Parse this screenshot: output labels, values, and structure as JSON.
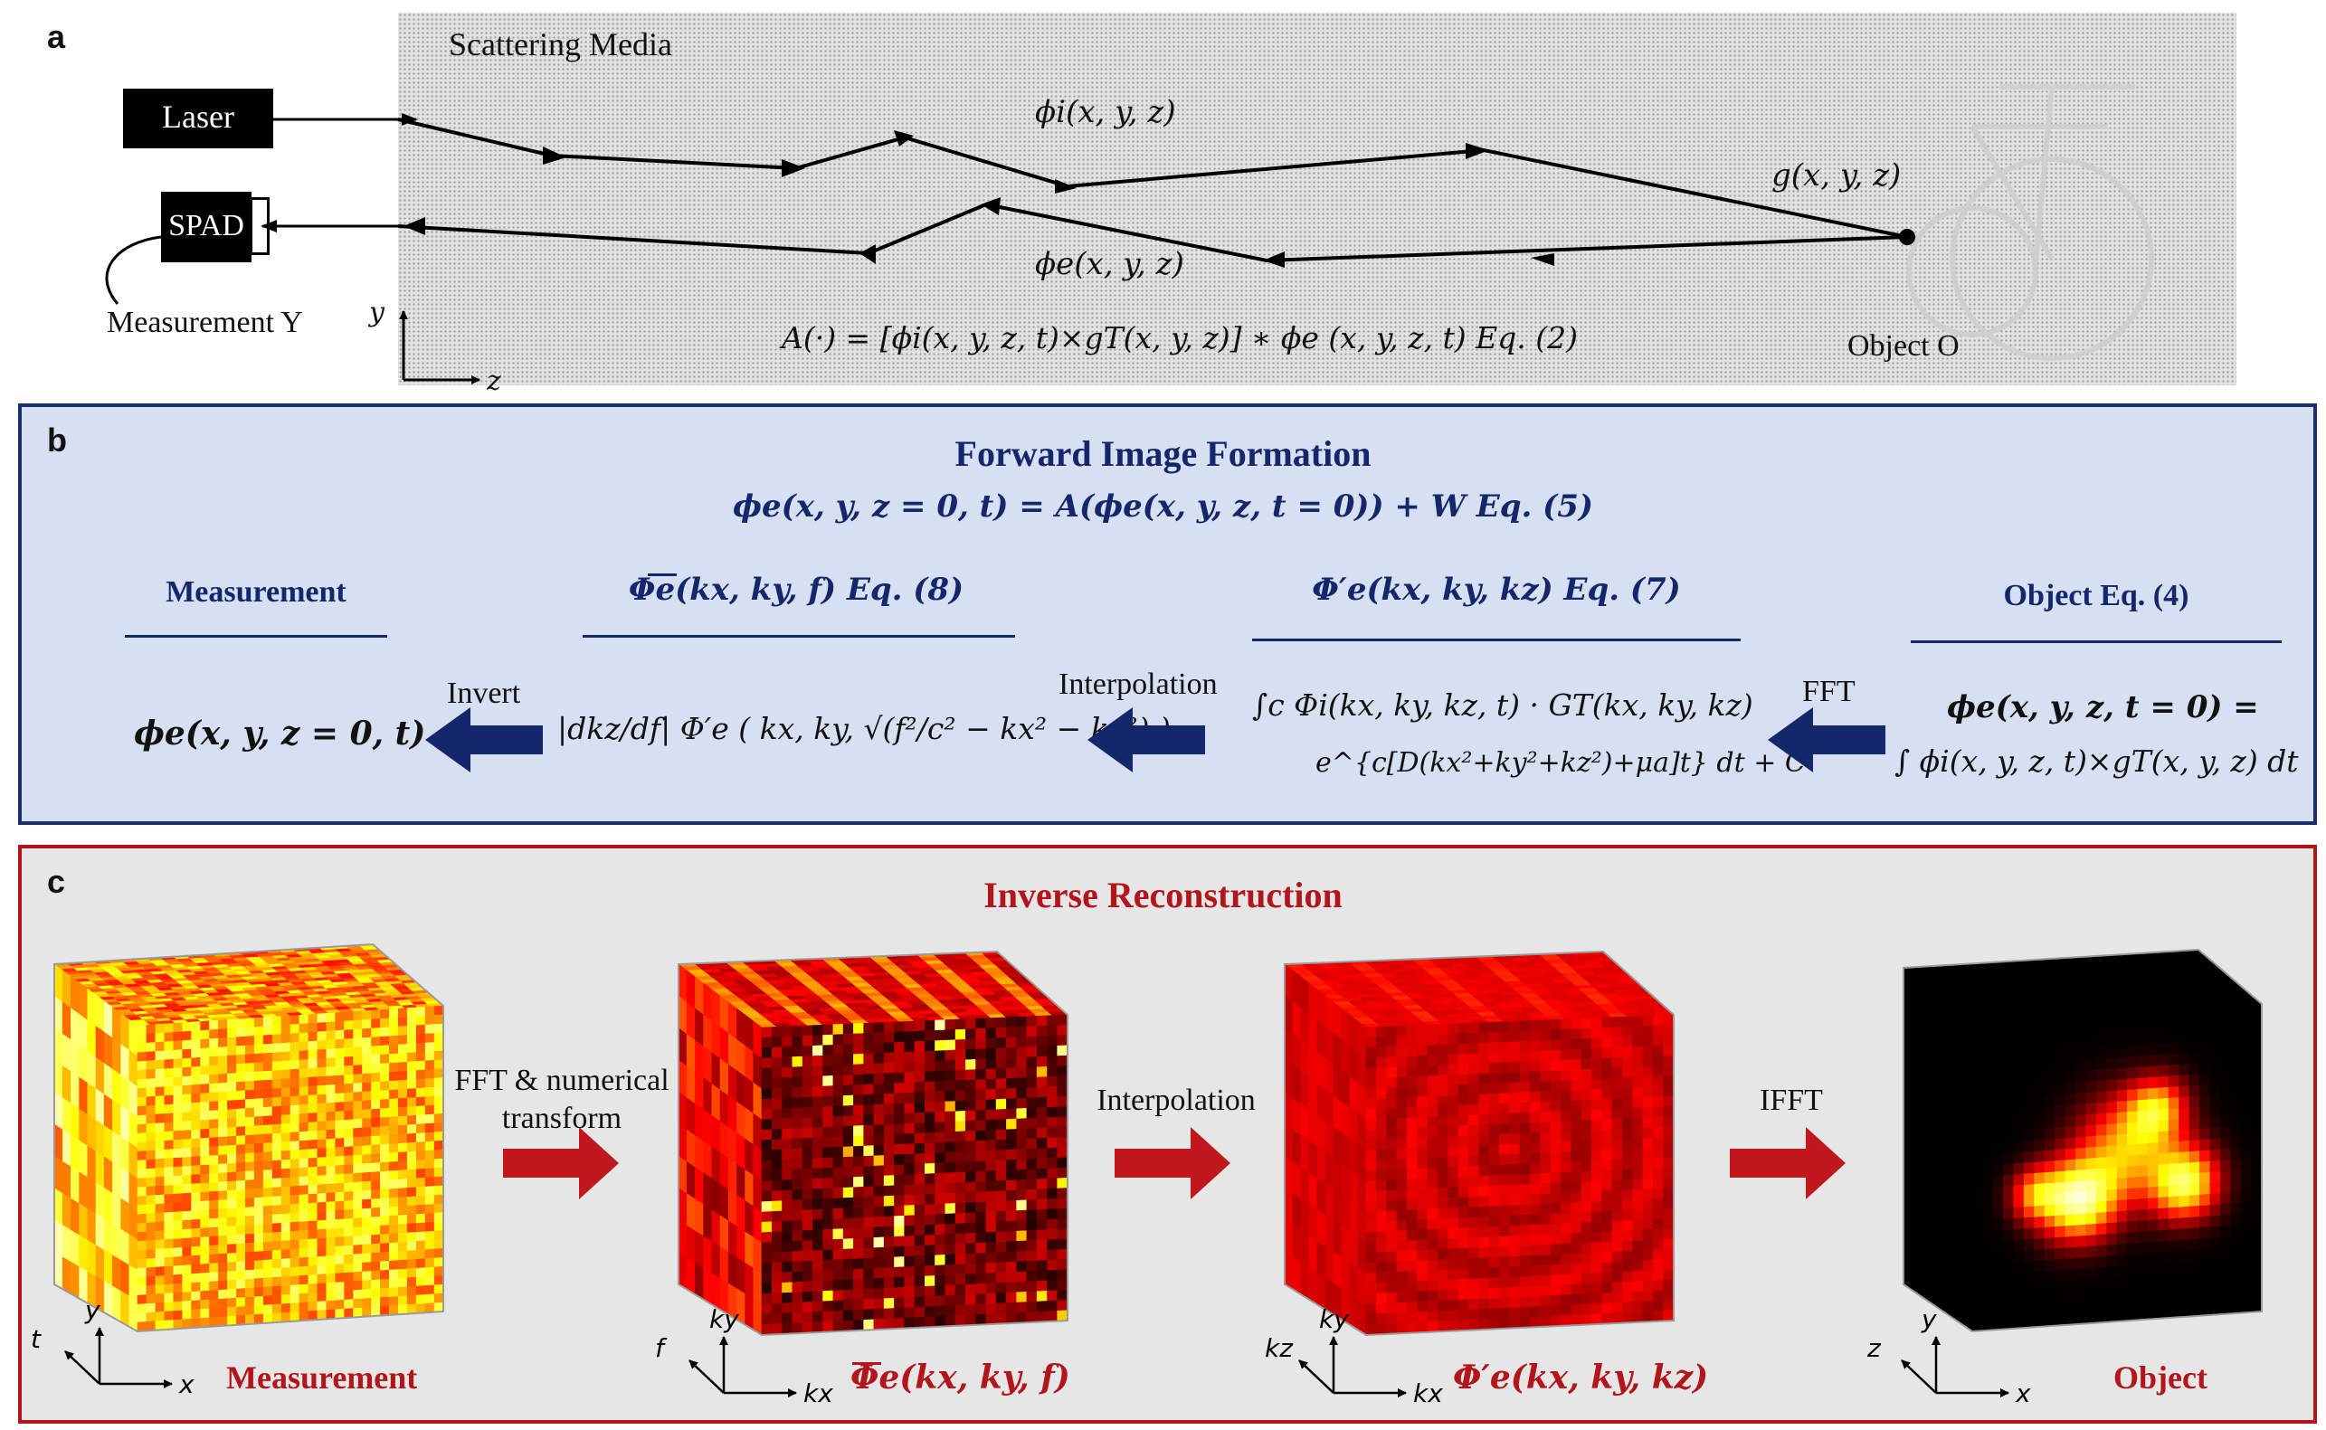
{
  "panel_a": {
    "letter": "a",
    "media_label": "Scattering Media",
    "laser": "Laser",
    "spad": "SPAD",
    "measurement": "Measurement Y",
    "phi_i": "ϕi(x, y, z)",
    "phi_e": "ϕe(x, y, z)",
    "g": "g(x, y, z)",
    "object": "Object O",
    "equation": "A(·) = [ϕi(x, y, z, t)×gT(x, y, z)] ∗ ϕe (x, y, z, t)  Eq. (2)",
    "axis_y": "y",
    "axis_z": "z"
  },
  "panel_b": {
    "letter": "b",
    "title": "Forward Image Formation",
    "main_eq": "ϕe(x, y, z = 0, t) = A(ϕe(x, y, z, t = 0)) + W  Eq. (5)",
    "col_measurement": "Measurement",
    "col_phi_bar": "Φe(kx, ky, f) Eq. (8)",
    "col_phi_prime": "Φ′e(kx, ky, kz)  Eq. (7)",
    "col_object": "Object Eq. (4)",
    "invert": "Invert",
    "interpolation": "Interpolation",
    "fft": "FFT",
    "meas_expr": "ϕe(x, y, z = 0, t)",
    "bar_expr": "|dkz/df| Φ′e ( kx, ky, √(f²/c² − kx² − ky²) )",
    "prime_expr_1": "∫c Φi(kx, ky, kz, t) · GT(kx, ky, kz)",
    "prime_expr_2": "e^{c[D(kx²+ky²+kz²)+μa]t} dt + C",
    "obj_expr_1": "ϕe(x, y, z, t = 0) =",
    "obj_expr_2": "∫ ϕi(x, y, z, t)×gT(x, y, z) dt"
  },
  "panel_c": {
    "letter": "c",
    "title": "Inverse Reconstruction",
    "arrow1": "FFT & numerical transform",
    "arrow2": "Interpolation",
    "arrow3": "IFFT",
    "label1": "Measurement",
    "label2": "Φe(kx, ky, f)",
    "label3": "Φ′e(kx, ky, kz)",
    "label4": "Object",
    "axes1": {
      "v": "y",
      "d": "t",
      "h": "x"
    },
    "axes2": {
      "v": "ky",
      "d": "f",
      "h": "kx"
    },
    "axes3": {
      "v": "ky",
      "d": "kz",
      "h": "kx"
    },
    "axes4": {
      "v": "y",
      "d": "z",
      "h": "x"
    }
  },
  "colors": {
    "navy": "#13276a",
    "panel_b_bg": "#d7e0f2",
    "red": "#b2151b",
    "panel_c_bg": "#e6e6e6"
  }
}
